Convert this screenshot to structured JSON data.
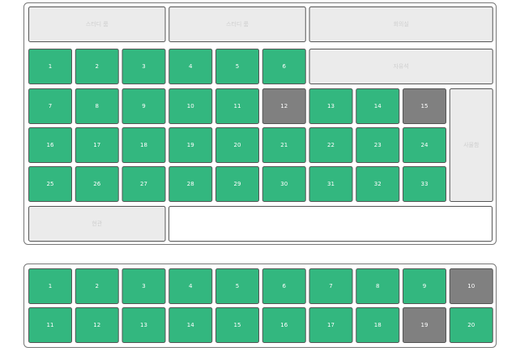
{
  "top_panel": {
    "rooms": [
      {
        "label": "스터디 룸"
      },
      {
        "label": "스터디 룸"
      },
      {
        "label": "회의실"
      },
      {
        "label": "자유석"
      },
      {
        "label": "사물함"
      },
      {
        "label": "현관"
      }
    ],
    "seats": [
      {
        "label": "1",
        "color": "#33b77f"
      },
      {
        "label": "2",
        "color": "#33b77f"
      },
      {
        "label": "3",
        "color": "#33b77f"
      },
      {
        "label": "4",
        "color": "#33b77f"
      },
      {
        "label": "5",
        "color": "#33b77f"
      },
      {
        "label": "6",
        "color": "#33b77f"
      },
      {
        "label": "7",
        "color": "#33b77f"
      },
      {
        "label": "8",
        "color": "#33b77f"
      },
      {
        "label": "9",
        "color": "#33b77f"
      },
      {
        "label": "10",
        "color": "#33b77f"
      },
      {
        "label": "11",
        "color": "#33b77f"
      },
      {
        "label": "12",
        "color": "#808080"
      },
      {
        "label": "13",
        "color": "#33b77f"
      },
      {
        "label": "14",
        "color": "#33b77f"
      },
      {
        "label": "15",
        "color": "#808080"
      },
      {
        "label": "16",
        "color": "#33b77f"
      },
      {
        "label": "17",
        "color": "#33b77f"
      },
      {
        "label": "18",
        "color": "#33b77f"
      },
      {
        "label": "19",
        "color": "#33b77f"
      },
      {
        "label": "20",
        "color": "#33b77f"
      },
      {
        "label": "21",
        "color": "#33b77f"
      },
      {
        "label": "22",
        "color": "#33b77f"
      },
      {
        "label": "23",
        "color": "#33b77f"
      },
      {
        "label": "24",
        "color": "#33b77f"
      },
      {
        "label": "25",
        "color": "#33b77f"
      },
      {
        "label": "26",
        "color": "#33b77f"
      },
      {
        "label": "27",
        "color": "#33b77f"
      },
      {
        "label": "28",
        "color": "#33b77f"
      },
      {
        "label": "29",
        "color": "#33b77f"
      },
      {
        "label": "30",
        "color": "#33b77f"
      },
      {
        "label": "31",
        "color": "#33b77f"
      },
      {
        "label": "32",
        "color": "#33b77f"
      },
      {
        "label": "33",
        "color": "#33b77f"
      }
    ]
  },
  "bottom_panel": {
    "seats": [
      {
        "label": "1",
        "color": "#33b77f"
      },
      {
        "label": "2",
        "color": "#33b77f"
      },
      {
        "label": "3",
        "color": "#33b77f"
      },
      {
        "label": "4",
        "color": "#33b77f"
      },
      {
        "label": "5",
        "color": "#33b77f"
      },
      {
        "label": "6",
        "color": "#33b77f"
      },
      {
        "label": "7",
        "color": "#33b77f"
      },
      {
        "label": "8",
        "color": "#33b77f"
      },
      {
        "label": "9",
        "color": "#33b77f"
      },
      {
        "label": "10",
        "color": "#808080"
      },
      {
        "label": "11",
        "color": "#33b77f"
      },
      {
        "label": "12",
        "color": "#33b77f"
      },
      {
        "label": "13",
        "color": "#33b77f"
      },
      {
        "label": "14",
        "color": "#33b77f"
      },
      {
        "label": "15",
        "color": "#33b77f"
      },
      {
        "label": "16",
        "color": "#33b77f"
      },
      {
        "label": "17",
        "color": "#33b77f"
      },
      {
        "label": "18",
        "color": "#33b77f"
      },
      {
        "label": "19",
        "color": "#808080"
      },
      {
        "label": "20",
        "color": "#33b77f"
      }
    ]
  }
}
